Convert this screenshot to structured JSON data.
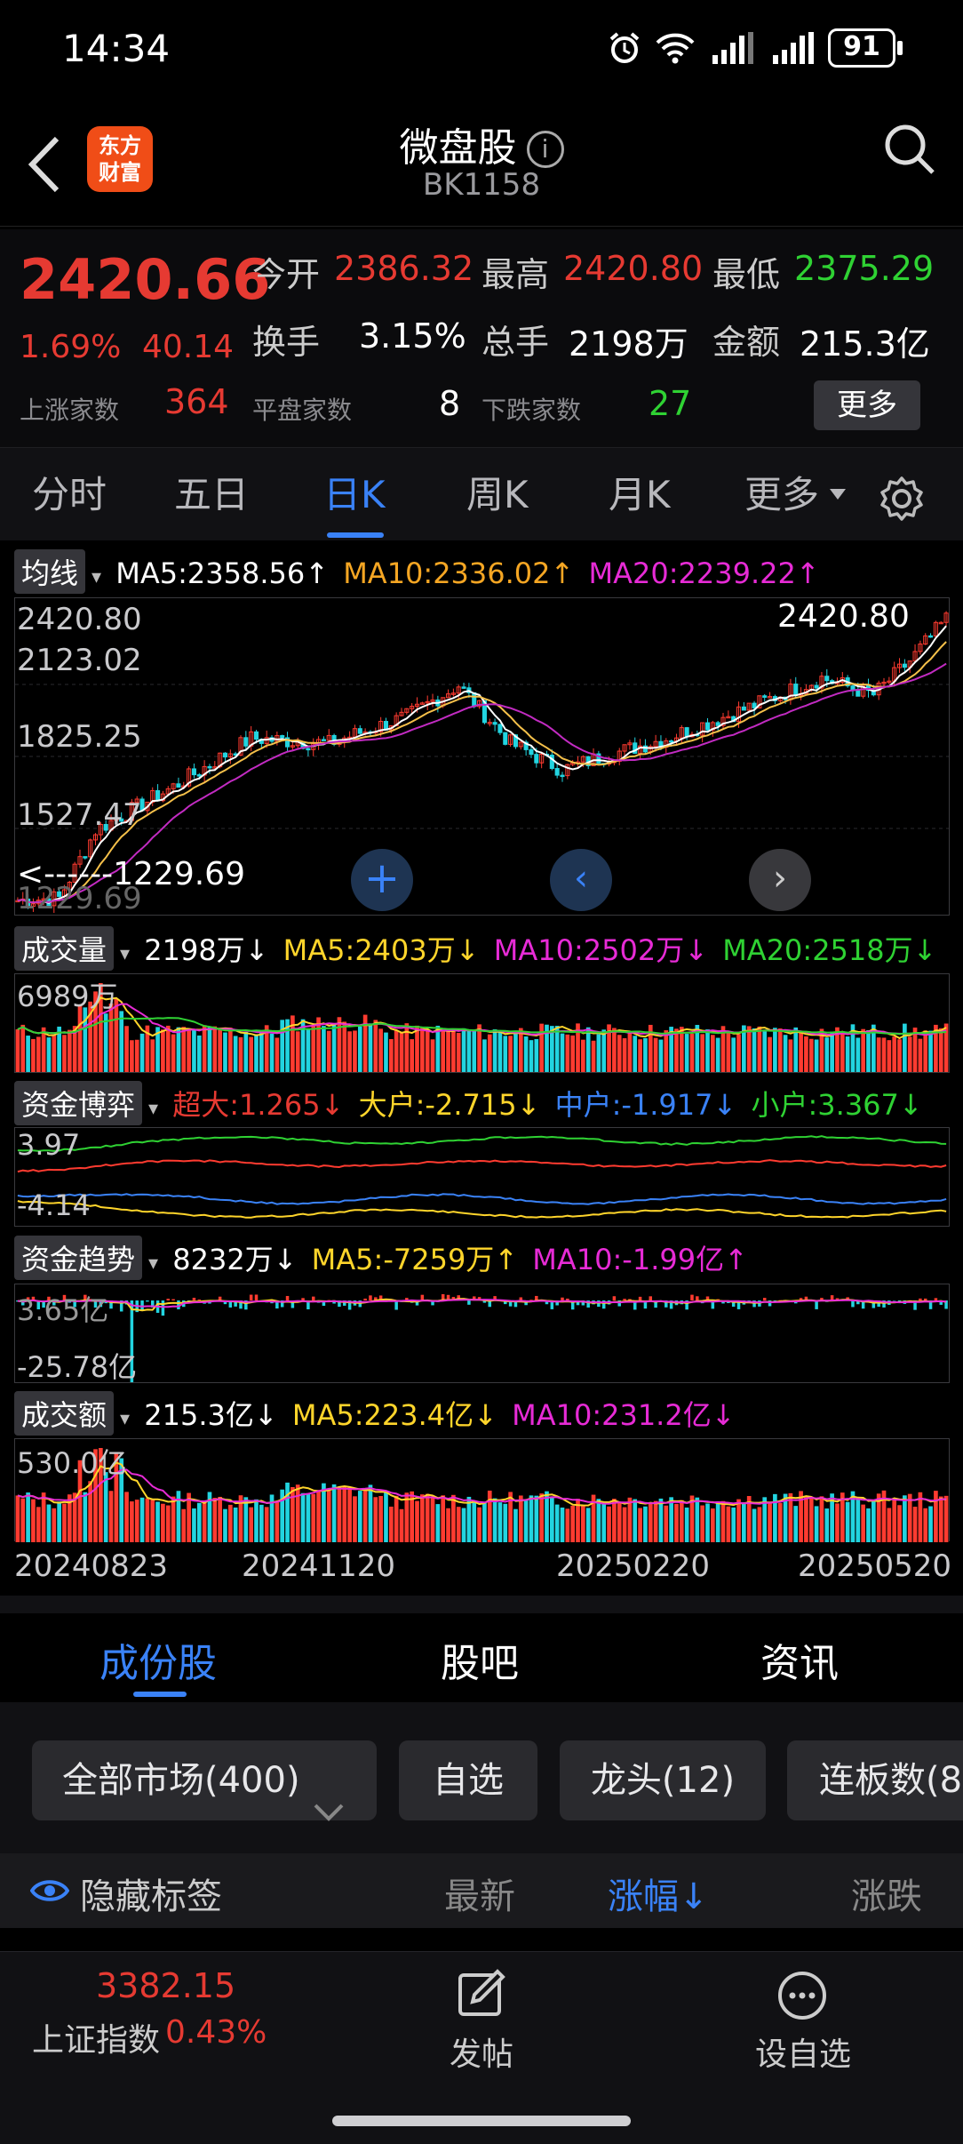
{
  "status": {
    "time": "14:34",
    "battery": "91"
  },
  "header": {
    "title": "微盘股",
    "code": "BK1158",
    "logo_line1": "东方",
    "logo_line2": "财富"
  },
  "quote": {
    "price": "2420.66",
    "change_pct": "1.69%",
    "change": "40.14",
    "open_label": "今开",
    "open": "2386.32",
    "high_label": "最高",
    "high": "2420.80",
    "low_label": "最低",
    "low": "2375.29",
    "turnover_label": "换手",
    "turnover": "3.15%",
    "volume_label": "总手",
    "volume": "2198万",
    "amount_label": "金额",
    "amount": "215.3亿",
    "up_label": "上涨家数",
    "up": "364",
    "flat_label": "平盘家数",
    "flat": "8",
    "down_label": "下跌家数",
    "down": "27",
    "more": "更多"
  },
  "tabs": [
    "分时",
    "五日",
    "日K",
    "周K",
    "月K",
    "更多"
  ],
  "kline": {
    "tag": "均线",
    "ma5": "MA5:2358.56↑",
    "ma10": "MA10:2336.02↑",
    "ma20": "MA20:2239.22↑",
    "y_labels": [
      "2420.80",
      "2123.02",
      "1825.25",
      "1527.47",
      "1229.69"
    ],
    "high_marker": "2420.80",
    "low_marker": "<------1229.69"
  },
  "volume_panel": {
    "tag": "成交量",
    "value": "2198万↓",
    "ma5": "MA5:2403万↓",
    "ma10": "MA10:2502万↓",
    "ma20": "MA20:2518万↓",
    "y_label": "6989万"
  },
  "fund_game": {
    "tag": "资金博弈",
    "super": "超大:1.265↓",
    "big": "大户:-2.715↓",
    "mid": "中户:-1.917↓",
    "small": "小户:3.367↓",
    "y_top": "3.97",
    "y_bottom": "-4.14"
  },
  "fund_trend": {
    "tag": "资金趋势",
    "value": "8232万↓",
    "ma5": "MA5:-7259万↑",
    "ma10": "MA10:-1.99亿↑",
    "y_top": "3.65亿",
    "y_bottom": "-25.78亿"
  },
  "amount_panel": {
    "tag": "成交额",
    "value": "215.3亿↓",
    "ma5": "MA5:223.4亿↓",
    "ma10": "MA10:231.2亿↓",
    "y_label": "530.0亿"
  },
  "dates": [
    "20240823",
    "20241120",
    "20250220",
    "20250520"
  ],
  "subtabs": [
    "成份股",
    "股吧",
    "资讯"
  ],
  "filters": {
    "market": "全部市场(400)",
    "watch": "自选",
    "leader": "龙头(12)",
    "limit": "连板数(8"
  },
  "columns": {
    "hide_tags": "隐藏标签",
    "latest": "最新",
    "pct": "涨幅↓",
    "change": "涨跌"
  },
  "bottom": {
    "index_value": "3382.15",
    "index_name": "上证指数",
    "index_pct": "0.43%",
    "post": "发帖",
    "watch": "设自选"
  }
}
